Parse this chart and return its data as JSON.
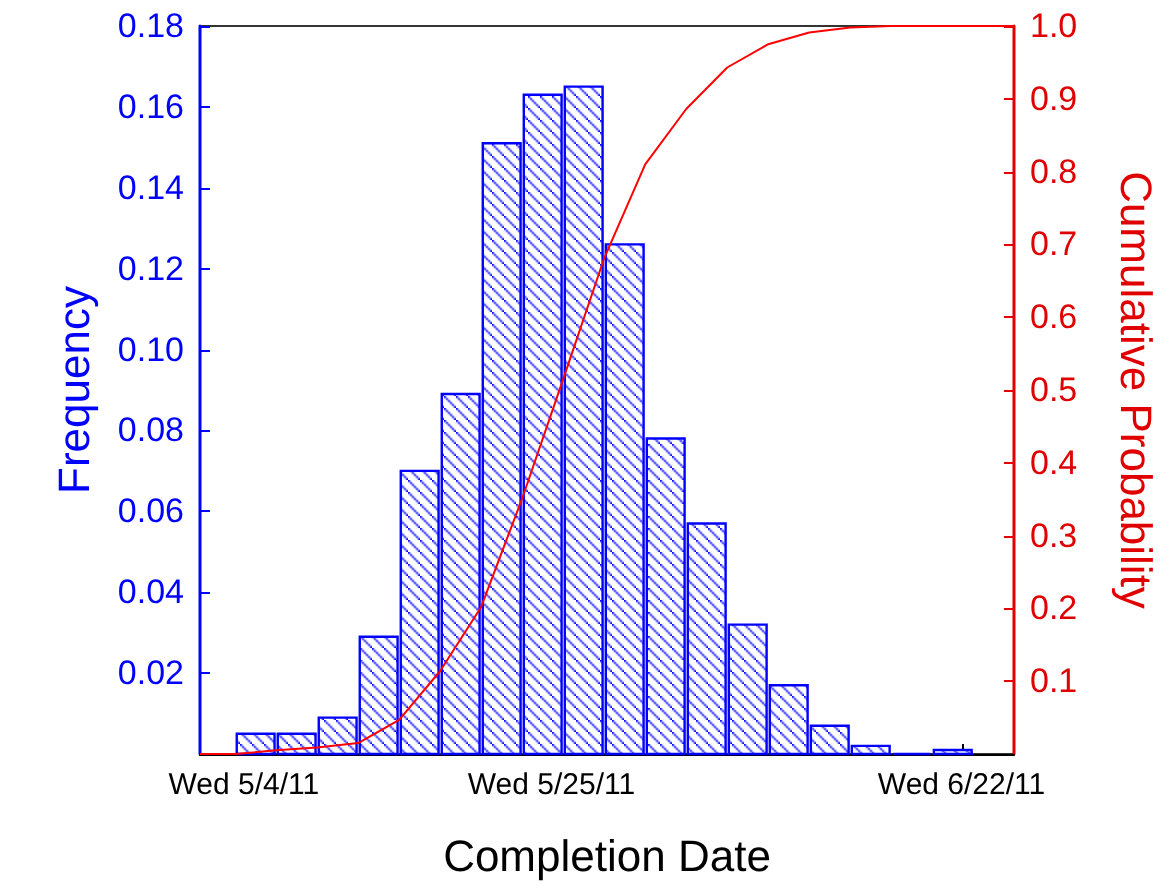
{
  "chart_data": {
    "type": "histogram",
    "xlabel": "Completion Date",
    "ylabel": "Frequency",
    "y2label": "Cumulative Probability",
    "xlim": [
      "2011-05-01",
      "2011-06-25T14:00"
    ],
    "xticks": [
      {
        "value": "2011-05-04",
        "label": "Wed 5/4/11"
      },
      {
        "value": "2011-05-25",
        "label": "Wed 5/25/11"
      },
      {
        "value": "2011-06-22",
        "label": "Wed 6/22/11"
      }
    ],
    "ylim": [
      0,
      0.18
    ],
    "yticks": [
      0.02,
      0.04,
      0.06,
      0.08,
      {
        "value": 0.1,
        "label": "0.10"
      },
      0.12,
      0.14,
      0.16,
      0.18
    ],
    "y2lim": [
      0,
      1.0
    ],
    "y2ticks": [
      0.1,
      0.2,
      0.3,
      0.4,
      0.5,
      0.6,
      0.7,
      0.8,
      0.9,
      {
        "value": 1.0,
        "label": "1.0"
      }
    ],
    "series": [
      {
        "color": "#0000ff",
        "bins": [
          "2011-05-03T09:36",
          "2011-05-06T04:48",
          "2011-05-09T00:00",
          "2011-05-11T19:12",
          "2011-05-14T14:24",
          "2011-05-17T09:36",
          "2011-05-20T04:48",
          "2011-05-23T00:00",
          "2011-05-25T19:12",
          "2011-05-28T14:24",
          "2011-05-31T09:36",
          "2011-06-03T04:48",
          "2011-06-06T00:00",
          "2011-06-08T19:12",
          "2011-06-11T14:24",
          "2011-06-14T09:36",
          "2011-06-17T04:48",
          "2011-06-20T00:00",
          "2011-06-22T19:12"
        ],
        "values": [
          0.005,
          0.005,
          0.009,
          0.029,
          0.07,
          0.089,
          0.151,
          0.163,
          0.165,
          0.126,
          0.078,
          0.057,
          0.032,
          0.017,
          0.007,
          0.002,
          0,
          0.001
        ]
      },
      {
        "type": "line",
        "axis": "y2",
        "color": "#ff0000",
        "marker": "none",
        "x": [
          "2011-05-01",
          "2011-05-03T09:36",
          "2011-05-06T04:48",
          "2011-05-09T00:00",
          "2011-05-11T19:12",
          "2011-05-14T14:24",
          "2011-05-17T09:36",
          "2011-05-20T04:48",
          "2011-05-23T00:00",
          "2011-05-25T19:12",
          "2011-05-28T14:24",
          "2011-05-31T09:36",
          "2011-06-03T04:48",
          "2011-06-06T00:00",
          "2011-06-08T19:12",
          "2011-06-11T14:24",
          "2011-06-14T09:36",
          "2011-06-17T04:48",
          "2011-06-20T00:00",
          "2011-06-22T19:12",
          "2011-06-25T14:00"
        ],
        "values": [
          0,
          0,
          0.005,
          0.009,
          0.015,
          0.047,
          0.114,
          0.202,
          0.351,
          0.515,
          0.681,
          0.81,
          0.886,
          0.943,
          0.975,
          0.991,
          0.998,
          1.0,
          1.0,
          1.0,
          1.0
        ]
      }
    ]
  }
}
